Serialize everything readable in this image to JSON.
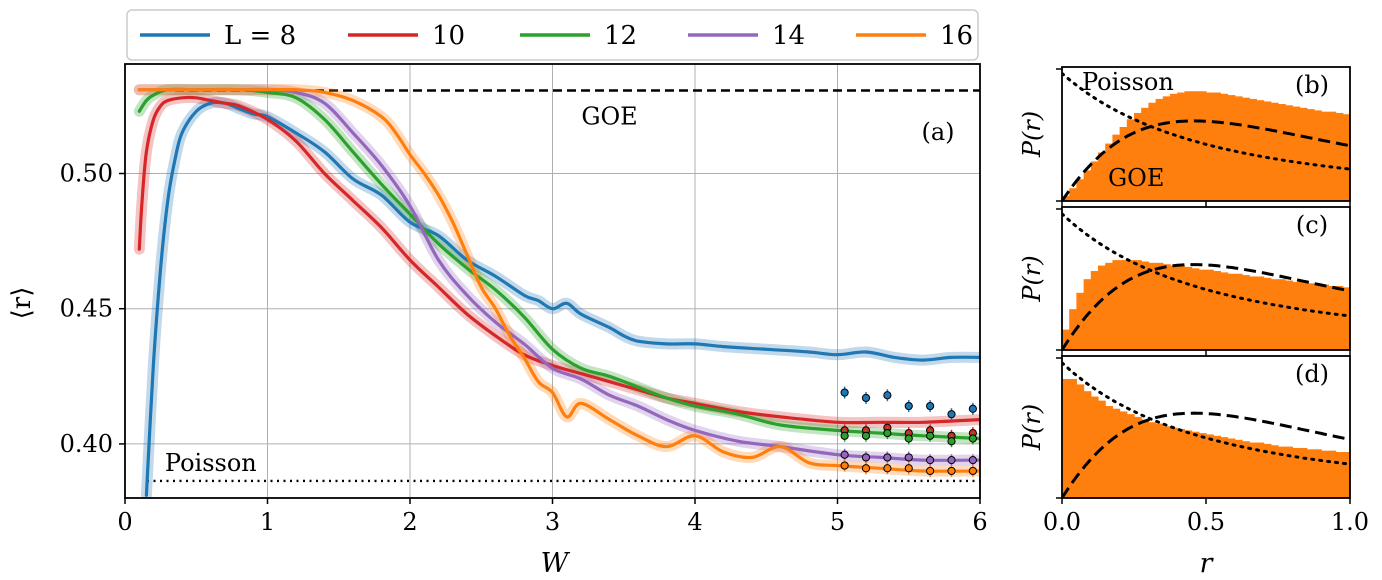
{
  "chart_data": [
    {
      "panel": "a",
      "type": "line",
      "panel_label": "(a)",
      "xlabel": "W",
      "ylabel": "⟨r⟩",
      "xlim": [
        0,
        6
      ],
      "ylim": [
        0.38,
        0.5405
      ],
      "xticks": [
        0,
        1,
        2,
        3,
        4,
        5,
        6
      ],
      "yticks": [
        0.4,
        0.45,
        0.5
      ],
      "ytick_labels": [
        "0.40",
        "0.45",
        "0.50"
      ],
      "grid": true,
      "legend_placement": "top, outside above axes, single row",
      "legend": [
        {
          "label": "L = 8",
          "color": "#1f77b4"
        },
        {
          "label": "10",
          "color": "#d62728"
        },
        {
          "label": "12",
          "color": "#2ca02c"
        },
        {
          "label": "14",
          "color": "#9467bd"
        },
        {
          "label": "16",
          "color": "#ff7f0e"
        }
      ],
      "reference_lines": [
        {
          "label": "GOE",
          "y": 0.5307,
          "style": "dashed"
        },
        {
          "label": "Poisson",
          "y": 0.3863,
          "style": "dotted"
        }
      ],
      "series": [
        {
          "name": "L = 8",
          "color": "#1f77b4",
          "x": [
            0.15,
            0.2,
            0.25,
            0.3,
            0.35,
            0.4,
            0.5,
            0.6,
            0.7,
            0.8,
            0.9,
            1.0,
            1.2,
            1.4,
            1.6,
            1.8,
            2.0,
            2.2,
            2.4,
            2.6,
            2.8,
            2.9,
            3.0,
            3.1,
            3.2,
            3.4,
            3.5,
            3.6,
            3.8,
            4.0,
            4.2,
            4.5,
            4.8,
            5.0,
            5.2,
            5.4,
            5.6,
            5.8,
            6.0
          ],
          "y": [
            0.381,
            0.43,
            0.465,
            0.49,
            0.505,
            0.515,
            0.523,
            0.526,
            0.526,
            0.524,
            0.522,
            0.521,
            0.515,
            0.508,
            0.498,
            0.492,
            0.482,
            0.477,
            0.468,
            0.462,
            0.455,
            0.453,
            0.45,
            0.452,
            0.448,
            0.443,
            0.44,
            0.438,
            0.437,
            0.437,
            0.436,
            0.435,
            0.434,
            0.433,
            0.434,
            0.432,
            0.431,
            0.432,
            0.432
          ]
        },
        {
          "name": "10",
          "color": "#d62728",
          "x": [
            0.1,
            0.12,
            0.15,
            0.2,
            0.25,
            0.3,
            0.4,
            0.5,
            0.6,
            0.7,
            0.8,
            1.0,
            1.2,
            1.4,
            1.6,
            1.8,
            2.0,
            2.2,
            2.4,
            2.6,
            2.8,
            3.0,
            3.2,
            3.4,
            3.6,
            3.8,
            4.0,
            4.3,
            4.6,
            5.0,
            5.3,
            5.6,
            6.0
          ],
          "y": [
            0.472,
            0.49,
            0.508,
            0.52,
            0.525,
            0.527,
            0.528,
            0.528,
            0.527,
            0.526,
            0.525,
            0.52,
            0.512,
            0.5,
            0.49,
            0.48,
            0.468,
            0.458,
            0.448,
            0.44,
            0.433,
            0.429,
            0.426,
            0.423,
            0.42,
            0.417,
            0.415,
            0.412,
            0.41,
            0.408,
            0.408,
            0.408,
            0.409
          ]
        },
        {
          "name": "12",
          "color": "#2ca02c",
          "x": [
            0.1,
            0.15,
            0.2,
            0.3,
            0.5,
            0.8,
            1.0,
            1.2,
            1.4,
            1.6,
            1.8,
            2.0,
            2.2,
            2.4,
            2.6,
            2.8,
            3.0,
            3.2,
            3.4,
            3.6,
            3.8,
            4.0,
            4.3,
            4.6,
            5.0,
            5.3,
            5.6,
            6.0
          ],
          "y": [
            0.523,
            0.527,
            0.529,
            0.531,
            0.531,
            0.531,
            0.53,
            0.528,
            0.52,
            0.508,
            0.496,
            0.485,
            0.474,
            0.465,
            0.457,
            0.447,
            0.435,
            0.428,
            0.425,
            0.421,
            0.417,
            0.414,
            0.411,
            0.407,
            0.405,
            0.404,
            0.403,
            0.402
          ]
        },
        {
          "name": "14",
          "color": "#9467bd",
          "x": [
            0.1,
            0.2,
            0.3,
            0.5,
            0.8,
            1.0,
            1.2,
            1.4,
            1.6,
            1.8,
            2.0,
            2.2,
            2.4,
            2.6,
            2.8,
            3.0,
            3.2,
            3.4,
            3.6,
            3.8,
            4.0,
            4.3,
            4.6,
            5.0,
            5.3,
            5.6,
            6.0
          ],
          "y": [
            0.531,
            0.531,
            0.531,
            0.531,
            0.531,
            0.531,
            0.53,
            0.526,
            0.515,
            0.503,
            0.488,
            0.468,
            0.455,
            0.445,
            0.437,
            0.428,
            0.424,
            0.418,
            0.414,
            0.409,
            0.405,
            0.401,
            0.399,
            0.396,
            0.395,
            0.394,
            0.394
          ]
        },
        {
          "name": "16",
          "color": "#ff7f0e",
          "x": [
            0.1,
            0.2,
            0.3,
            0.5,
            0.8,
            1.0,
            1.2,
            1.4,
            1.6,
            1.8,
            1.9,
            2.0,
            2.1,
            2.2,
            2.3,
            2.4,
            2.5,
            2.6,
            2.7,
            2.8,
            2.9,
            3.0,
            3.1,
            3.2,
            3.4,
            3.6,
            3.8,
            4.0,
            4.2,
            4.4,
            4.6,
            4.8,
            5.0,
            5.3,
            5.6,
            6.0
          ],
          "y": [
            0.531,
            0.531,
            0.531,
            0.531,
            0.531,
            0.531,
            0.531,
            0.53,
            0.527,
            0.521,
            0.515,
            0.507,
            0.5,
            0.492,
            0.482,
            0.47,
            0.458,
            0.45,
            0.44,
            0.432,
            0.423,
            0.419,
            0.41,
            0.415,
            0.409,
            0.403,
            0.399,
            0.403,
            0.397,
            0.395,
            0.399,
            0.393,
            0.392,
            0.391,
            0.39,
            0.39
          ]
        }
      ],
      "markers": [
        {
          "name": "L = 8",
          "color": "#1f77b4",
          "x": [
            5.05,
            5.2,
            5.35,
            5.5,
            5.65,
            5.8,
            5.95
          ],
          "y": [
            0.419,
            0.417,
            0.418,
            0.414,
            0.414,
            0.411,
            0.413
          ]
        },
        {
          "name": "10",
          "color": "#d62728",
          "x": [
            5.05,
            5.2,
            5.35,
            5.5,
            5.65,
            5.8,
            5.95
          ],
          "y": [
            0.405,
            0.405,
            0.406,
            0.404,
            0.405,
            0.403,
            0.404
          ]
        },
        {
          "name": "12",
          "color": "#2ca02c",
          "x": [
            5.05,
            5.2,
            5.35,
            5.5,
            5.65,
            5.8,
            5.95
          ],
          "y": [
            0.403,
            0.403,
            0.404,
            0.402,
            0.403,
            0.401,
            0.402
          ]
        },
        {
          "name": "14",
          "color": "#9467bd",
          "x": [
            5.05,
            5.2,
            5.35,
            5.5,
            5.65,
            5.8,
            5.95
          ],
          "y": [
            0.396,
            0.395,
            0.395,
            0.395,
            0.394,
            0.394,
            0.394
          ]
        },
        {
          "name": "16",
          "color": "#ff7f0e",
          "x": [
            5.05,
            5.2,
            5.35,
            5.5,
            5.65,
            5.8,
            5.95
          ],
          "y": [
            0.392,
            0.391,
            0.391,
            0.391,
            0.39,
            0.39,
            0.39
          ]
        }
      ]
    },
    {
      "panel": "b",
      "type": "bar",
      "panel_label": "(b)",
      "ylabel": "P(r)",
      "xlim": [
        0,
        1
      ],
      "bar_color": "#ff7f0e",
      "annotations": [
        "Poisson",
        "GOE"
      ],
      "bins": 40,
      "values": [
        0.04,
        0.1,
        0.17,
        0.24,
        0.31,
        0.38,
        0.45,
        0.52,
        0.58,
        0.64,
        0.69,
        0.73,
        0.77,
        0.8,
        0.82,
        0.84,
        0.85,
        0.86,
        0.86,
        0.86,
        0.85,
        0.85,
        0.84,
        0.83,
        0.82,
        0.81,
        0.8,
        0.79,
        0.78,
        0.77,
        0.76,
        0.75,
        0.74,
        0.73,
        0.72,
        0.71,
        0.7,
        0.7,
        0.69,
        0.68
      ],
      "ylim": [
        0,
        1.0
      ]
    },
    {
      "panel": "c",
      "type": "bar",
      "panel_label": "(c)",
      "ylabel": "P(r)",
      "xlim": [
        0,
        1
      ],
      "bar_color": "#ff7f0e",
      "bins": 40,
      "values": [
        0.15,
        0.3,
        0.42,
        0.52,
        0.58,
        0.62,
        0.64,
        0.66,
        0.66,
        0.66,
        0.66,
        0.65,
        0.64,
        0.64,
        0.63,
        0.62,
        0.62,
        0.61,
        0.6,
        0.59,
        0.59,
        0.58,
        0.57,
        0.56,
        0.56,
        0.55,
        0.54,
        0.54,
        0.53,
        0.52,
        0.52,
        0.51,
        0.5,
        0.5,
        0.49,
        0.48,
        0.48,
        0.47,
        0.47,
        0.46
      ],
      "ylim": [
        0,
        1.0
      ]
    },
    {
      "panel": "d",
      "type": "bar",
      "panel_label": "(d)",
      "ylabel": "P(r)",
      "xlim": [
        0,
        1
      ],
      "xticks": [
        0.0,
        0.5,
        1.0
      ],
      "xtick_labels": [
        "0.0",
        "0.5",
        "1.0"
      ],
      "xlabel": "r",
      "bar_color": "#ff7f0e",
      "bins": 40,
      "values": [
        0.88,
        0.88,
        0.84,
        0.79,
        0.75,
        0.72,
        0.68,
        0.66,
        0.64,
        0.62,
        0.6,
        0.58,
        0.56,
        0.55,
        0.53,
        0.52,
        0.51,
        0.5,
        0.49,
        0.48,
        0.47,
        0.46,
        0.45,
        0.44,
        0.43,
        0.42,
        0.41,
        0.41,
        0.4,
        0.39,
        0.38,
        0.38,
        0.37,
        0.37,
        0.36,
        0.36,
        0.35,
        0.35,
        0.34,
        0.34
      ],
      "ylim": [
        0,
        1.0
      ]
    }
  ]
}
